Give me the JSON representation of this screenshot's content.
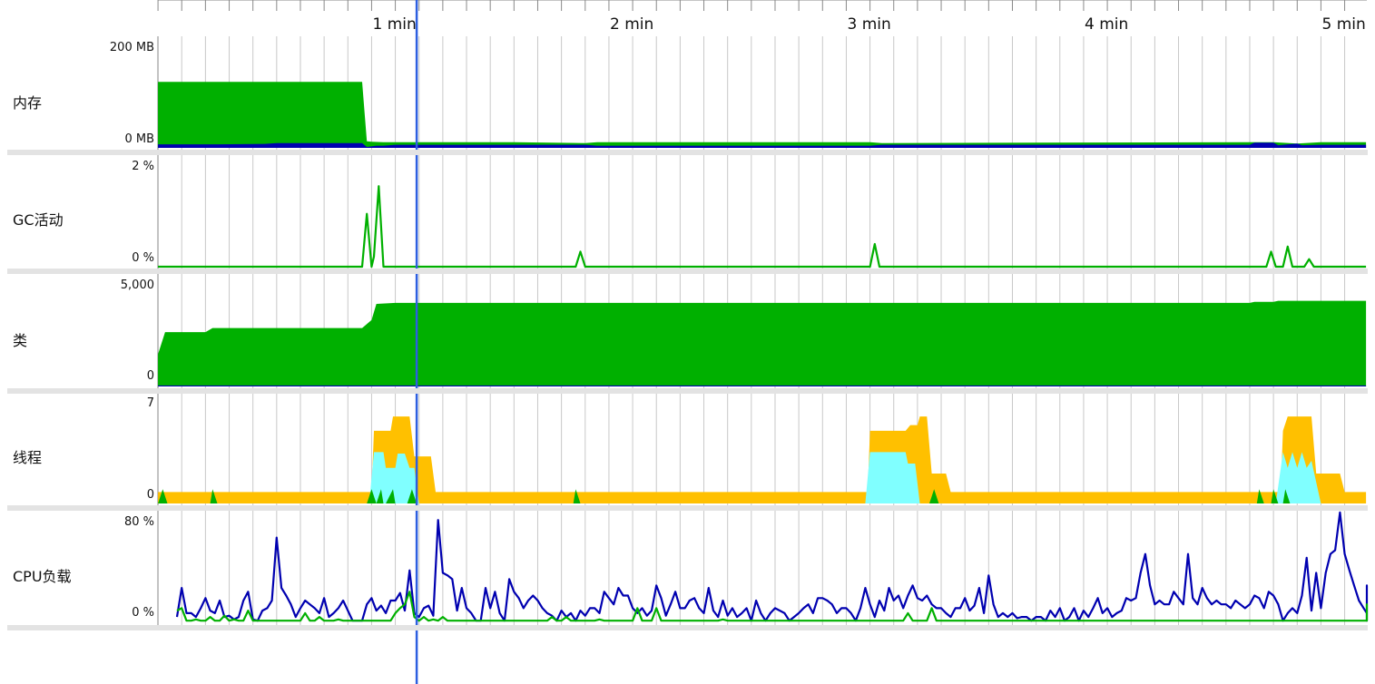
{
  "time_axis": {
    "minutes_visible": 5.09,
    "tick_labels": [
      "1 min",
      "2 min",
      "3 min",
      "4 min",
      "5 min"
    ],
    "minor_ticks_per_min": 10,
    "cursor_min": 1.09
  },
  "colors": {
    "green": "#00b000",
    "blue": "#0000b0",
    "cursor": "#2d5fe0",
    "orange": "#ffc000",
    "cyan": "#80ffff",
    "grid": "#c8c8c8"
  },
  "tracks": [
    {
      "id": "memory",
      "label": "内存",
      "max_label": "200 MB",
      "min_label": "0 MB"
    },
    {
      "id": "gc",
      "label": "GC活动",
      "max_label": "2 %",
      "min_label": "0 %"
    },
    {
      "id": "classes",
      "label": "类",
      "max_label": "5,000",
      "min_label": "0"
    },
    {
      "id": "threads",
      "label": "线程",
      "max_label": "7",
      "min_label": "0"
    },
    {
      "id": "cpu",
      "label": "CPU负载",
      "max_label": "80 %",
      "min_label": "0 %"
    }
  ],
  "chart_data": [
    {
      "type": "area",
      "title": "内存",
      "ylim": [
        0,
        200
      ],
      "units": "MB",
      "series": [
        {
          "color": "green",
          "x": [
            0,
            0.86,
            0.88,
            0.9,
            0.95,
            1.0,
            1.5,
            1.8,
            1.85,
            3.0,
            3.05,
            4.6,
            4.7,
            4.8,
            4.9,
            5.09
          ],
          "y": [
            150,
            150,
            15,
            14,
            13,
            13,
            13,
            11,
            13,
            13,
            11,
            13,
            13,
            10,
            13,
            13
          ]
        },
        {
          "color": "blue",
          "x": [
            0,
            0.25,
            0.45,
            0.5,
            0.86,
            0.88,
            0.92,
            0.95,
            1.0,
            1.3,
            1.8,
            1.85,
            3.0,
            3.05,
            4.6,
            4.62,
            4.7,
            4.72,
            4.8,
            4.82,
            4.9,
            5.09
          ],
          "y": [
            8,
            8,
            9,
            11,
            11,
            2,
            5,
            5,
            7,
            7,
            7,
            5,
            5,
            7,
            7,
            12,
            12,
            6,
            10,
            6,
            7,
            7
          ]
        }
      ]
    },
    {
      "type": "line",
      "title": "GC活动",
      "ylim": [
        0,
        2
      ],
      "units": "%",
      "series": [
        {
          "color": "green",
          "x": [
            0,
            0.86,
            0.88,
            0.9,
            0.91,
            0.93,
            0.95,
            1.76,
            1.78,
            1.8,
            3.0,
            3.02,
            3.04,
            4.67,
            4.69,
            4.71,
            4.74,
            4.76,
            4.78,
            4.83,
            4.85,
            4.87,
            5.09
          ],
          "y": [
            0,
            0,
            1.05,
            0,
            0.2,
            1.6,
            0,
            0,
            0.3,
            0,
            0,
            0.45,
            0,
            0,
            0.3,
            0,
            0,
            0.4,
            0,
            0,
            0.15,
            0,
            0
          ]
        }
      ]
    },
    {
      "type": "area",
      "title": "类",
      "ylim": [
        0,
        5000
      ],
      "series": [
        {
          "color": "green",
          "x": [
            0,
            0.03,
            0.2,
            0.23,
            0.86,
            0.9,
            0.92,
            1.0,
            1.05,
            4.6,
            4.62,
            4.7,
            4.72,
            5.09
          ],
          "y": [
            1600,
            2700,
            2700,
            2900,
            2900,
            3300,
            4100,
            4150,
            4150,
            4150,
            4200,
            4200,
            4250,
            4250
          ]
        },
        {
          "color": "blue",
          "x": [
            0,
            5.09
          ],
          "y": [
            50,
            50
          ]
        }
      ]
    },
    {
      "type": "area",
      "title": "线程",
      "ylim": [
        0,
        7
      ],
      "series": [
        {
          "color": "orange",
          "x": [
            0,
            0.9,
            0.91,
            0.98,
            0.99,
            1.06,
            1.08,
            1.15,
            1.17,
            2.99,
            3.0,
            3.15,
            3.17,
            3.2,
            3.21,
            3.24,
            3.26,
            3.32,
            3.34,
            4.73,
            4.74,
            4.76,
            4.86,
            4.88,
            4.98,
            5.0,
            5.09
          ],
          "y": [
            0.8,
            0.8,
            5.1,
            5.1,
            6.1,
            6.1,
            3.3,
            3.3,
            0.8,
            0.8,
            5.1,
            5.1,
            5.5,
            5.5,
            6.1,
            6.1,
            2.1,
            2.1,
            0.8,
            0.8,
            5.1,
            6.1,
            6.1,
            2.1,
            2.1,
            0.8,
            0.8
          ]
        },
        {
          "color": "cyan",
          "x": [
            0,
            0.89,
            0.91,
            0.95,
            0.96,
            1.0,
            1.01,
            1.04,
            1.06,
            1.08,
            1.1,
            2.98,
            3.0,
            3.15,
            3.16,
            3.19,
            3.21,
            4.71,
            4.74,
            4.76,
            4.78,
            4.8,
            4.82,
            4.84,
            4.86,
            4.9,
            5.09
          ],
          "y": [
            0,
            0,
            3.6,
            3.6,
            2.5,
            2.5,
            3.5,
            3.5,
            2.5,
            2.5,
            0,
            0,
            3.6,
            3.6,
            2.8,
            2.8,
            0,
            0,
            3.6,
            2.5,
            3.6,
            2.5,
            3.6,
            2.5,
            3.0,
            0,
            0
          ]
        },
        {
          "color": "green",
          "x": [
            0,
            0.02,
            0.04,
            0.22,
            0.23,
            0.25,
            0.88,
            0.9,
            0.92,
            0.94,
            0.95,
            0.96,
            0.99,
            1.0,
            1.01,
            1.05,
            1.07,
            1.09,
            1.75,
            1.76,
            1.78,
            3.02,
            3.03,
            3.04,
            3.25,
            3.27,
            3.29,
            4.63,
            4.64,
            4.66,
            4.69,
            4.7,
            4.72,
            4.74,
            4.75,
            4.77,
            5.09
          ],
          "y": [
            0,
            1,
            0,
            0,
            1,
            0,
            0,
            1,
            0,
            1,
            0,
            0,
            1,
            0,
            0,
            0,
            1,
            0,
            0,
            1,
            0,
            0,
            0,
            0,
            0,
            1,
            0,
            0,
            1,
            0,
            0,
            1,
            0,
            0,
            1,
            0,
            0
          ]
        }
      ]
    },
    {
      "type": "line",
      "title": "CPU负载",
      "ylim": [
        0,
        80
      ],
      "series": [
        {
          "color": "blue",
          "name": "",
          "x_step": 0.02,
          "y": [
            5,
            28,
            8,
            8,
            5,
            12,
            20,
            10,
            8,
            18,
            5,
            6,
            3,
            5,
            18,
            25,
            3,
            2,
            10,
            12,
            18,
            68,
            28,
            22,
            15,
            5,
            12,
            18,
            15,
            12,
            8,
            20,
            5,
            8,
            12,
            18,
            10,
            2,
            2,
            2,
            15,
            20,
            10,
            14,
            8,
            18,
            18,
            24,
            10,
            42,
            8,
            5,
            12,
            14,
            6,
            82,
            40,
            38,
            35,
            10,
            28,
            12,
            8,
            2,
            2,
            28,
            12,
            25,
            8,
            2,
            35,
            25,
            20,
            12,
            18,
            22,
            18,
            12,
            8,
            6,
            2,
            10,
            5,
            8,
            2,
            10,
            6,
            12,
            12,
            8,
            25,
            20,
            15,
            28,
            22,
            22,
            12,
            8,
            12,
            6,
            10,
            30,
            20,
            6,
            15,
            25,
            12,
            12,
            18,
            20,
            12,
            8,
            28,
            10,
            5,
            18,
            6,
            12,
            5,
            8,
            12,
            2,
            18,
            8,
            2,
            8,
            12,
            10,
            8,
            2,
            5,
            8,
            12,
            15,
            8,
            20,
            20,
            18,
            15,
            8,
            12,
            12,
            8,
            2,
            12,
            28,
            15,
            5,
            18,
            10,
            28,
            18,
            22,
            12,
            22,
            30,
            20,
            18,
            22,
            15,
            12,
            12,
            8,
            5,
            12,
            12,
            20,
            10,
            14,
            28,
            8,
            38,
            15,
            5,
            8,
            5,
            8,
            4,
            5,
            5,
            2,
            5,
            5,
            2,
            10,
            5,
            12,
            2,
            5,
            12,
            2,
            10,
            5,
            12,
            20,
            8,
            12,
            5,
            8,
            10,
            20,
            18,
            20,
            40,
            55,
            30,
            15,
            18,
            15,
            15,
            25,
            20,
            15,
            55,
            20,
            15,
            28,
            20,
            15,
            18,
            15,
            15,
            12,
            18,
            15,
            12,
            15,
            22,
            20,
            12,
            25,
            22,
            15,
            2,
            8,
            12,
            8,
            22,
            52,
            10,
            40,
            12,
            40,
            55,
            58,
            88,
            55,
            42,
            30,
            18,
            12,
            8,
            18,
            30,
            12,
            5,
            2,
            10,
            8
          ]
        },
        {
          "color": "green",
          "name": "",
          "x_step": 0.02,
          "y": [
            10,
            12,
            2,
            2,
            3,
            2,
            2,
            5,
            2,
            2,
            6,
            2,
            3,
            2,
            2,
            10,
            2,
            2,
            2,
            2,
            2,
            2,
            2,
            2,
            2,
            2,
            2,
            8,
            2,
            2,
            5,
            2,
            2,
            2,
            3,
            2,
            2,
            2,
            2,
            2,
            2,
            2,
            2,
            2,
            2,
            2,
            8,
            12,
            15,
            25,
            5,
            2,
            5,
            2,
            3,
            2,
            5,
            2,
            2,
            2,
            2,
            2,
            2,
            2,
            2,
            2,
            2,
            2,
            2,
            2,
            2,
            2,
            2,
            2,
            2,
            2,
            2,
            2,
            2,
            5,
            2,
            2,
            5,
            2,
            2,
            2,
            2,
            2,
            2,
            3,
            2,
            2,
            2,
            2,
            2,
            2,
            2,
            12,
            2,
            2,
            2,
            12,
            2,
            2,
            2,
            2,
            2,
            2,
            2,
            2,
            2,
            2,
            2,
            2,
            2,
            3,
            2,
            2,
            2,
            2,
            2,
            2,
            2,
            2,
            2,
            2,
            2,
            2,
            2,
            2,
            2,
            2,
            2,
            2,
            2,
            2,
            2,
            2,
            2,
            2,
            2,
            2,
            2,
            2,
            2,
            2,
            2,
            2,
            2,
            2,
            2,
            2,
            2,
            2,
            8,
            2,
            2,
            2,
            2,
            12,
            2,
            2,
            2,
            2,
            2,
            2,
            2,
            2,
            2,
            2,
            2,
            2,
            2,
            2,
            2,
            2,
            2,
            2,
            2,
            2,
            2,
            2,
            2,
            2,
            2,
            2,
            2,
            2,
            2,
            2,
            2,
            2,
            2,
            2,
            2,
            2,
            2,
            2,
            2,
            2,
            2,
            2,
            2,
            2,
            2,
            2,
            2,
            2,
            2,
            2,
            2,
            2,
            2,
            2,
            2,
            2,
            2,
            2,
            2,
            2,
            2,
            2,
            2,
            2,
            2,
            2,
            2,
            2,
            2,
            2,
            2,
            2,
            2,
            2,
            2,
            2,
            2,
            2,
            2,
            2,
            2,
            2,
            2,
            2,
            2,
            2,
            2,
            2,
            2,
            2,
            2,
            2,
            2,
            2,
            15,
            10,
            8,
            5,
            2,
            5,
            8,
            2,
            2,
            2,
            2,
            2,
            2,
            2,
            2,
            2,
            2,
            2,
            2,
            2,
            2,
            2,
            2,
            2,
            2,
            2,
            2
          ]
        }
      ]
    }
  ]
}
